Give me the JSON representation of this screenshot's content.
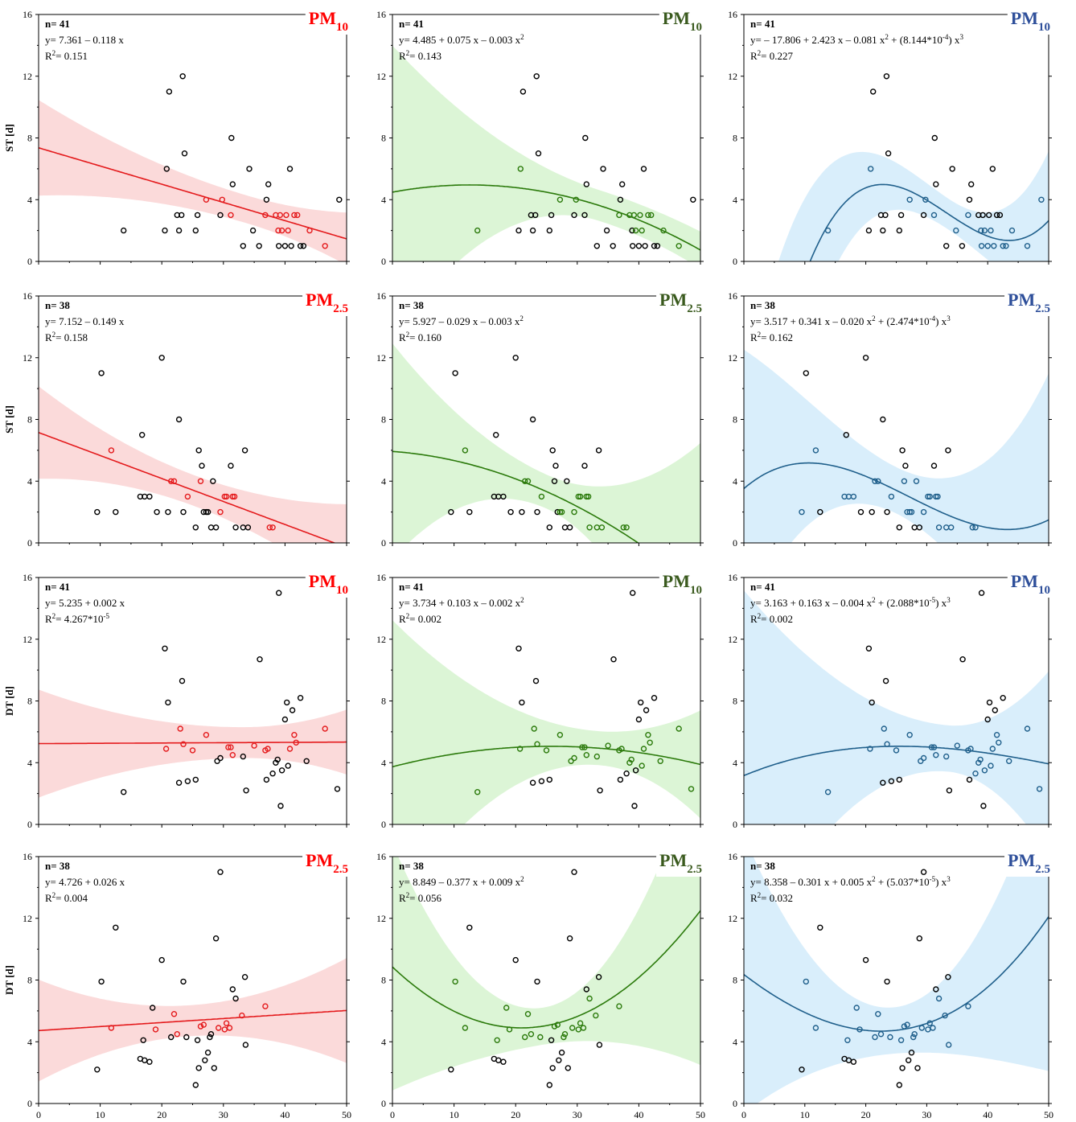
{
  "colors": {
    "red": "#e41a1c",
    "green": "#2b7a0b",
    "blue": "#1f5f8b",
    "red_band": "#fbdada",
    "green_band": "#dcf5d6",
    "blue_band": "#d9eefb",
    "red_pm": "#ff0000",
    "green_pm": "#3a5a1e",
    "blue_pm": "#2e4f9a"
  },
  "x_ticks": [
    "0",
    "10",
    "20",
    "30",
    "40",
    "50"
  ],
  "y_ticks": [
    "0",
    "4",
    "8",
    "12",
    "16"
  ],
  "pm_labels": {
    "pm10_base": "PM",
    "pm10_sub": "10",
    "pm25_base": "PM",
    "pm25_sub": "2.5"
  },
  "chart_data": [
    {
      "id": "ST-PM10",
      "type": "scatter",
      "ylabel": "ST [d]",
      "xlim": [
        0,
        50
      ],
      "ylim": [
        0,
        16
      ],
      "n": "n= 41",
      "points": [
        [
          13.8,
          2
        ],
        [
          20.5,
          2
        ],
        [
          20.8,
          6
        ],
        [
          21.2,
          11
        ],
        [
          22.8,
          2
        ],
        [
          22.5,
          3
        ],
        [
          23.2,
          3
        ],
        [
          23.4,
          12
        ],
        [
          23.7,
          7
        ],
        [
          25.5,
          2
        ],
        [
          25.8,
          3
        ],
        [
          27.2,
          4
        ],
        [
          29.5,
          3
        ],
        [
          29.8,
          4
        ],
        [
          31.2,
          3
        ],
        [
          31.5,
          5
        ],
        [
          31.3,
          8
        ],
        [
          33.2,
          1
        ],
        [
          34.2,
          6
        ],
        [
          34.8,
          2
        ],
        [
          35.8,
          1
        ],
        [
          36.8,
          3
        ],
        [
          37.0,
          4
        ],
        [
          37.3,
          5
        ],
        [
          38.5,
          3
        ],
        [
          38.9,
          2
        ],
        [
          39.0,
          1
        ],
        [
          39.2,
          3
        ],
        [
          39.5,
          2
        ],
        [
          40.0,
          1
        ],
        [
          40.2,
          3
        ],
        [
          40.5,
          2
        ],
        [
          40.8,
          6
        ],
        [
          41.0,
          1
        ],
        [
          41.5,
          3
        ],
        [
          42.0,
          3
        ],
        [
          42.5,
          1
        ],
        [
          43.0,
          1
        ],
        [
          44.0,
          2
        ],
        [
          46.5,
          1
        ],
        [
          48.8,
          4
        ]
      ]
    },
    {
      "id": "ST-PM25",
      "type": "scatter",
      "ylabel": "ST [d]",
      "xlim": [
        0,
        50
      ],
      "ylim": [
        0,
        16
      ],
      "n": "n= 38",
      "points": [
        [
          9.5,
          2
        ],
        [
          10.2,
          11
        ],
        [
          11.8,
          6
        ],
        [
          12.5,
          2
        ],
        [
          16.5,
          3
        ],
        [
          16.8,
          7
        ],
        [
          17.2,
          3
        ],
        [
          18.0,
          3
        ],
        [
          19.2,
          2
        ],
        [
          20.0,
          12
        ],
        [
          21.0,
          2
        ],
        [
          21.5,
          4
        ],
        [
          22.0,
          4
        ],
        [
          22.8,
          8
        ],
        [
          23.5,
          2
        ],
        [
          24.2,
          3
        ],
        [
          25.5,
          1
        ],
        [
          26.0,
          6
        ],
        [
          26.3,
          4
        ],
        [
          26.5,
          5
        ],
        [
          26.8,
          2
        ],
        [
          27.2,
          2
        ],
        [
          27.5,
          2
        ],
        [
          28.0,
          1
        ],
        [
          28.3,
          4
        ],
        [
          28.8,
          1
        ],
        [
          29.5,
          2
        ],
        [
          30.2,
          3
        ],
        [
          30.5,
          3
        ],
        [
          31.2,
          5
        ],
        [
          31.5,
          3
        ],
        [
          31.8,
          3
        ],
        [
          32.0,
          1
        ],
        [
          33.2,
          1
        ],
        [
          33.5,
          6
        ],
        [
          34.0,
          1
        ],
        [
          37.5,
          1
        ],
        [
          38.0,
          1
        ]
      ]
    },
    {
      "id": "DT-PM10",
      "type": "scatter",
      "ylabel": "DT [d]",
      "xlim": [
        0,
        50
      ],
      "ylim": [
        0,
        16
      ],
      "n": "n= 41",
      "points": [
        [
          13.8,
          2.1
        ],
        [
          20.5,
          11.4
        ],
        [
          20.7,
          4.9
        ],
        [
          21.0,
          7.9
        ],
        [
          22.8,
          2.7
        ],
        [
          23.0,
          6.2
        ],
        [
          23.3,
          9.3
        ],
        [
          23.5,
          5.2
        ],
        [
          24.2,
          2.8
        ],
        [
          25.0,
          4.8
        ],
        [
          25.5,
          2.9
        ],
        [
          27.2,
          5.8
        ],
        [
          29.0,
          4.1
        ],
        [
          29.5,
          4.3
        ],
        [
          30.8,
          5.0
        ],
        [
          31.2,
          5.0
        ],
        [
          31.5,
          4.5
        ],
        [
          33.2,
          4.4
        ],
        [
          33.7,
          2.2
        ],
        [
          35.0,
          5.1
        ],
        [
          35.9,
          10.7
        ],
        [
          36.8,
          4.8
        ],
        [
          37.0,
          2.9
        ],
        [
          37.2,
          4.9
        ],
        [
          38.0,
          3.3
        ],
        [
          38.5,
          4.0
        ],
        [
          38.8,
          4.2
        ],
        [
          39.0,
          15.0
        ],
        [
          39.3,
          1.2
        ],
        [
          39.5,
          3.5
        ],
        [
          40.0,
          6.8
        ],
        [
          40.3,
          7.9
        ],
        [
          40.5,
          3.8
        ],
        [
          40.8,
          4.9
        ],
        [
          41.2,
          7.4
        ],
        [
          41.5,
          5.8
        ],
        [
          41.8,
          5.3
        ],
        [
          42.5,
          8.2
        ],
        [
          43.5,
          4.1
        ],
        [
          46.5,
          6.2
        ],
        [
          48.5,
          2.3
        ]
      ]
    },
    {
      "id": "DT-PM25",
      "type": "scatter",
      "ylabel": "DT [d]",
      "xlim": [
        0,
        50
      ],
      "ylim": [
        0,
        16
      ],
      "n": "n= 38",
      "points": [
        [
          9.5,
          2.2
        ],
        [
          10.2,
          7.9
        ],
        [
          11.8,
          4.9
        ],
        [
          12.5,
          11.4
        ],
        [
          16.5,
          2.9
        ],
        [
          17.0,
          4.1
        ],
        [
          17.2,
          2.8
        ],
        [
          18.0,
          2.7
        ],
        [
          18.5,
          6.2
        ],
        [
          19.0,
          4.8
        ],
        [
          20.0,
          9.3
        ],
        [
          21.5,
          4.3
        ],
        [
          22.0,
          5.8
        ],
        [
          22.5,
          4.5
        ],
        [
          23.5,
          7.9
        ],
        [
          24.0,
          4.3
        ],
        [
          25.5,
          1.2
        ],
        [
          25.8,
          4.1
        ],
        [
          26.0,
          2.3
        ],
        [
          26.3,
          5.0
        ],
        [
          26.8,
          5.1
        ],
        [
          27.0,
          2.8
        ],
        [
          27.5,
          3.3
        ],
        [
          27.8,
          4.3
        ],
        [
          28.0,
          4.5
        ],
        [
          28.5,
          2.3
        ],
        [
          28.8,
          10.7
        ],
        [
          29.2,
          4.9
        ],
        [
          29.5,
          15.0
        ],
        [
          30.2,
          4.8
        ],
        [
          30.5,
          5.2
        ],
        [
          31.0,
          4.9
        ],
        [
          31.5,
          7.4
        ],
        [
          32.0,
          6.8
        ],
        [
          33.0,
          5.7
        ],
        [
          33.5,
          8.2
        ],
        [
          33.6,
          3.8
        ],
        [
          36.8,
          6.3
        ]
      ]
    }
  ],
  "panels": [
    {
      "row": 0,
      "col": 0,
      "model": "linear",
      "fit_eq": "y= 7.361 – 0.118 x",
      "r2_val": "= 0.151",
      "coefs": [
        7.361,
        -0.118
      ],
      "band": {
        "left_half": 3.1,
        "right_half": 1.7,
        "min_half": 0.9
      }
    },
    {
      "row": 0,
      "col": 1,
      "model": "quadratic",
      "fit_eq": "y= 4.485 + 0.075 x – 0.003 x",
      "r2_val": "= 0.143",
      "coefs": [
        4.485,
        0.075,
        -0.003
      ],
      "band": {
        "left_half": 9.5,
        "right_half": 1.2,
        "min_half": 1.0
      }
    },
    {
      "row": 0,
      "col": 2,
      "model": "cubic",
      "fit_eq": "y= – 17.806 + 2.423 x – 0.081 x + (8.144*10) x",
      "r2_val": "= 0.227",
      "coefs": [
        -17.806,
        2.423,
        -0.081,
        0.0008144
      ],
      "band": {
        "left_half": 9.0,
        "right_half": 4.5,
        "min_half": 1.0
      }
    },
    {
      "row": 1,
      "col": 0,
      "model": "linear",
      "fit_eq": "y= 7.152 – 0.149 x",
      "r2_val": "= 0.158",
      "coefs": [
        7.152,
        -0.149
      ],
      "band": {
        "left_half": 3.0,
        "right_half": 2.8,
        "min_half": 1.0
      }
    },
    {
      "row": 1,
      "col": 1,
      "model": "quadratic",
      "fit_eq": "y= 5.927 – 0.029 x – 0.003 x",
      "r2_val": "= 0.160",
      "coefs": [
        5.927,
        -0.029,
        -0.003
      ],
      "band": {
        "left_half": 7.0,
        "right_half": 9.5,
        "min_half": 1.1
      }
    },
    {
      "row": 1,
      "col": 2,
      "model": "cubic",
      "fit_eq": "y=  3.517 + 0.341 x – 0.020 x + (2.474*10) x",
      "r2_val": "= 0.162",
      "coefs": [
        3.517,
        0.341,
        -0.02,
        0.0002474
      ],
      "band": {
        "left_half": 9.0,
        "right_half": 9.5,
        "min_half": 1.5
      }
    },
    {
      "row": 2,
      "col": 0,
      "model": "linear",
      "fit_eq": "y= 5.235 + 0.002 x",
      "r2_val": "= 4.267*10",
      "coefs": [
        5.235,
        0.002
      ],
      "band": {
        "left_half": 3.5,
        "right_half": 2.1,
        "min_half": 1.0
      }
    },
    {
      "row": 2,
      "col": 1,
      "model": "quadratic",
      "fit_eq": "y= 3.734 + 0.103 x – 0.002 x",
      "r2_val": "= 0.002",
      "coefs": [
        3.734,
        0.103,
        -0.002
      ],
      "band": {
        "left_half": 9.5,
        "right_half": 3.5,
        "min_half": 1.1
      }
    },
    {
      "row": 2,
      "col": 2,
      "model": "cubic",
      "fit_eq": "y= 3.163 + 0.163 x – 0.004 x + (2.088*10) x",
      "r2_val": "= 0.002",
      "coefs": [
        3.163,
        0.163,
        -0.004,
        2.088e-05
      ],
      "band": {
        "left_half": 12,
        "right_half": 6,
        "min_half": 1.5
      }
    },
    {
      "row": 3,
      "col": 0,
      "model": "linear",
      "fit_eq": "y= 4.726 + 0.026 x",
      "r2_val": "= 0.004",
      "coefs": [
        4.726,
        0.026
      ],
      "band": {
        "left_half": 3.3,
        "right_half": 3.4,
        "min_half": 1.0
      }
    },
    {
      "row": 3,
      "col": 1,
      "model": "quadratic",
      "fit_eq": "y= 8.849 – 0.377 x + 0.009 x",
      "r2_val": "= 0.056",
      "coefs": [
        8.849,
        -0.377,
        0.009
      ],
      "band": {
        "left_half": 8,
        "right_half": 10,
        "min_half": 1.2
      }
    },
    {
      "row": 3,
      "col": 2,
      "model": "cubic",
      "fit_eq": "y= 8.358 – 0.301 x + 0.005 x + (5.037*10) x",
      "r2_val": "= 0.032",
      "coefs": [
        8.358,
        -0.301,
        0.005,
        5.037e-05
      ],
      "band": {
        "left_half": 9,
        "right_half": 10,
        "min_half": 1.5
      }
    }
  ],
  "superscripts": {
    "linear": [],
    "quadratic": [
      "2"
    ],
    "cubic": [
      "2",
      "-4",
      "3"
    ],
    "cubic_r1": [
      "2",
      "-4",
      "3"
    ],
    "cubic_r2": [
      "2",
      "-5",
      "3"
    ],
    "cubic_r3": [
      "2",
      "-5",
      "3"
    ]
  },
  "r2_label": "R",
  "r2_sup": "2",
  "r2_tail_r2c0": "-5"
}
